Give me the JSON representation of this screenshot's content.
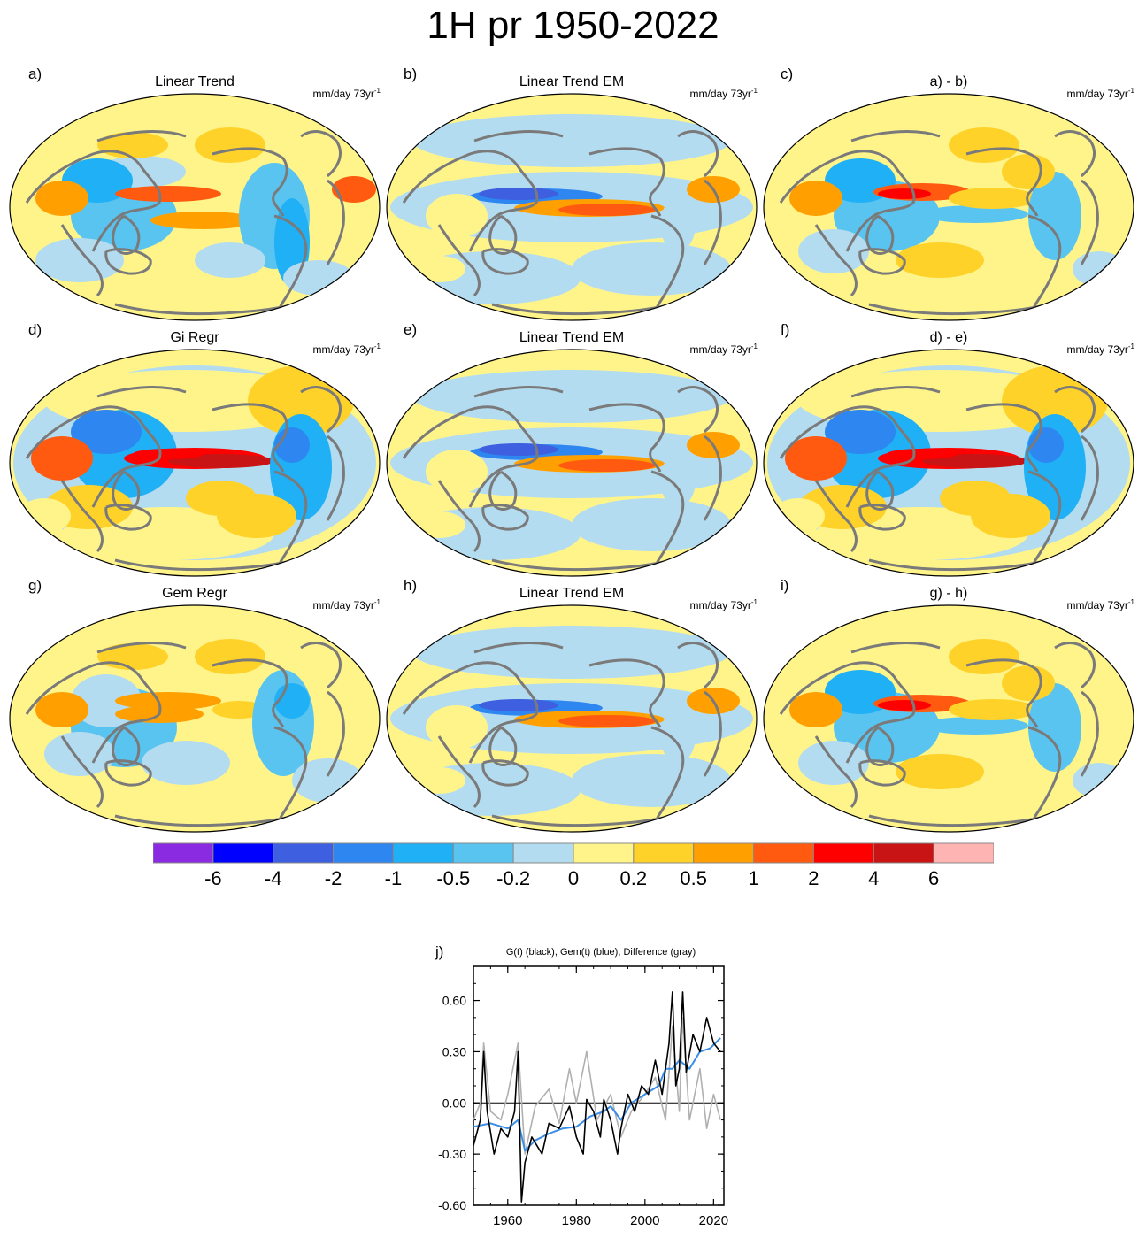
{
  "figure": {
    "title": "1H pr 1950-2022"
  },
  "panels": [
    {
      "label": "a)",
      "title": "Linear Trend",
      "unit": "mm/day 73yr",
      "unit_sup": "-1",
      "pattern": "trend"
    },
    {
      "label": "b)",
      "title": "Linear Trend EM",
      "unit": "mm/day 73yr",
      "unit_sup": "-1",
      "pattern": "em"
    },
    {
      "label": "c)",
      "title": "a) - b)",
      "unit": "mm/day 73yr",
      "unit_sup": "-1",
      "pattern": "resid"
    },
    {
      "label": "d)",
      "title": "Gi Regr",
      "unit": "mm/day 73yr",
      "unit_sup": "-1",
      "pattern": "gi"
    },
    {
      "label": "e)",
      "title": "Linear Trend EM",
      "unit": "mm/day 73yr",
      "unit_sup": "-1",
      "pattern": "em"
    },
    {
      "label": "f)",
      "title": "d) - e)",
      "unit": "mm/day 73yr",
      "unit_sup": "-1",
      "pattern": "gi"
    },
    {
      "label": "g)",
      "title": "Gem Regr",
      "unit": "mm/day 73yr",
      "unit_sup": "-1",
      "pattern": "gem"
    },
    {
      "label": "h)",
      "title": "Linear Trend EM",
      "unit": "mm/day 73yr",
      "unit_sup": "-1",
      "pattern": "em"
    },
    {
      "label": "i)",
      "title": "g) - h)",
      "unit": "mm/day 73yr",
      "unit_sup": "-1",
      "pattern": "resid"
    }
  ],
  "colorbar": {
    "labels": [
      "-6",
      "-4",
      "-2",
      "-1",
      "-0.5",
      "-0.2",
      "0",
      "0.2",
      "0.5",
      "1",
      "2",
      "4",
      "6"
    ],
    "colors": [
      "#8a2be2",
      "#0000ff",
      "#3d5fe0",
      "#2e86f0",
      "#1fb0f5",
      "#5ac4f0",
      "#b4dcf0",
      "#fff48a",
      "#ffd22a",
      "#ffa000",
      "#ff5a10",
      "#ff0000",
      "#c81414",
      "#ffb4b4"
    ]
  },
  "chart_data": {
    "type": "line",
    "label": "j)",
    "title": "G(t)  (black), Gem(t) (blue), Difference (gray)",
    "xlim": [
      1950,
      2023
    ],
    "ylim": [
      -0.6,
      0.8
    ],
    "xticks": [
      "1960",
      "1980",
      "2000",
      "2020"
    ],
    "yticks": [
      "0.60",
      "0.30",
      "0.00",
      "-0.30",
      "-0.60"
    ],
    "reference_line": 0.0,
    "series": [
      {
        "color": "#000000",
        "x": [
          1950,
          1952,
          1953,
          1954,
          1956,
          1958,
          1960,
          1962,
          1963,
          1964,
          1965,
          1967,
          1970,
          1972,
          1975,
          1978,
          1980,
          1982,
          1983,
          1985,
          1987,
          1988,
          1990,
          1992,
          1993,
          1995,
          1997,
          1999,
          2001,
          2003,
          2005,
          2007,
          2008,
          2009,
          2010,
          2011,
          2012,
          2014,
          2016,
          2018,
          2020,
          2022
        ],
        "y": [
          -0.25,
          -0.1,
          0.3,
          -0.05,
          -0.3,
          -0.15,
          -0.2,
          -0.05,
          0.3,
          -0.58,
          -0.35,
          -0.2,
          -0.3,
          -0.12,
          -0.15,
          -0.02,
          -0.2,
          -0.3,
          0.02,
          -0.05,
          -0.2,
          0.02,
          -0.1,
          -0.3,
          -0.15,
          0.05,
          -0.05,
          0.1,
          0.05,
          0.25,
          0.05,
          0.35,
          0.65,
          0.1,
          0.2,
          0.65,
          0.18,
          0.4,
          0.3,
          0.5,
          0.35,
          0.3
        ]
      },
      {
        "color": "#3a8ee6",
        "x": [
          1950,
          1955,
          1960,
          1963,
          1965,
          1968,
          1972,
          1976,
          1980,
          1984,
          1988,
          1990,
          1993,
          1996,
          2000,
          2004,
          2006,
          2008,
          2010,
          2013,
          2016,
          2019,
          2022
        ],
        "y": [
          -0.14,
          -0.12,
          -0.15,
          -0.1,
          -0.28,
          -0.22,
          -0.18,
          -0.15,
          -0.14,
          -0.08,
          -0.05,
          -0.02,
          -0.1,
          0.0,
          0.05,
          0.1,
          0.2,
          0.2,
          0.25,
          0.2,
          0.3,
          0.32,
          0.38
        ]
      },
      {
        "color": "#b0b0b0",
        "x": [
          1950,
          1952,
          1953,
          1955,
          1958,
          1960,
          1963,
          1965,
          1968,
          1972,
          1975,
          1978,
          1980,
          1983,
          1986,
          1990,
          1993,
          1996,
          2000,
          2003,
          2006,
          2008,
          2010,
          2011,
          2013,
          2016,
          2018,
          2020,
          2022
        ],
        "y": [
          -0.1,
          0.0,
          0.35,
          -0.05,
          -0.1,
          0.05,
          0.35,
          -0.3,
          -0.02,
          0.08,
          -0.12,
          0.2,
          0.0,
          0.3,
          -0.1,
          0.05,
          -0.2,
          -0.05,
          0.05,
          0.15,
          -0.1,
          0.45,
          -0.05,
          0.5,
          -0.1,
          0.2,
          -0.15,
          0.05,
          -0.1
        ]
      }
    ]
  }
}
